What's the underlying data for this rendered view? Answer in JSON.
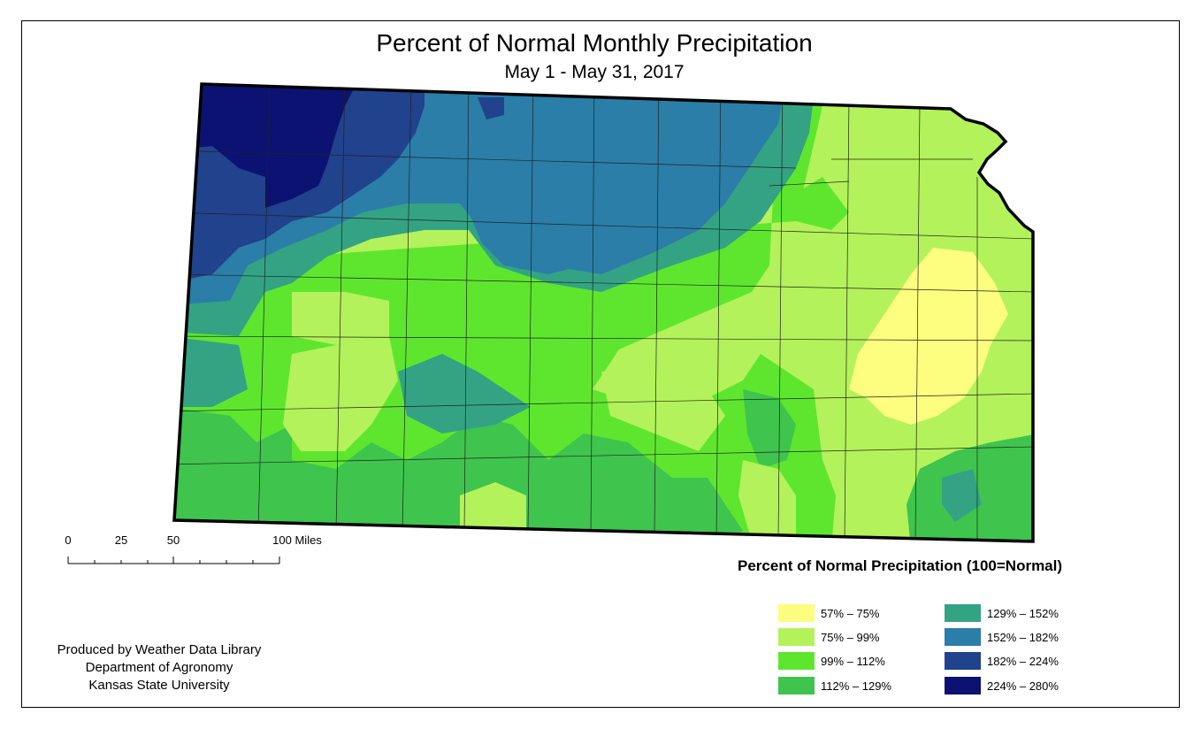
{
  "title": "Percent of Normal Monthly Precipitation",
  "subtitle": "May 1 - May 31, 2017",
  "scale_bar": {
    "labels": [
      "0",
      "25",
      "50",
      "100 Miles"
    ]
  },
  "credits": [
    "Produced by Weather Data Library",
    "Department of Agronomy",
    "Kansas State University"
  ],
  "legend": {
    "title": "Percent of Normal Precipitation (100=Normal)",
    "items": [
      {
        "label": "57% – 75%",
        "color": "#fdfd7f"
      },
      {
        "label": "75% – 99%",
        "color": "#b3f25a"
      },
      {
        "label": "99% – 112%",
        "color": "#5ee62f"
      },
      {
        "label": "112% – 129%",
        "color": "#3fc44e"
      },
      {
        "label": "129% – 152%",
        "color": "#33a384"
      },
      {
        "label": "152% – 182%",
        "color": "#2a7ea8"
      },
      {
        "label": "182% – 224%",
        "color": "#21428c"
      },
      {
        "label": "224% – 280%",
        "color": "#0b1271"
      }
    ]
  }
}
